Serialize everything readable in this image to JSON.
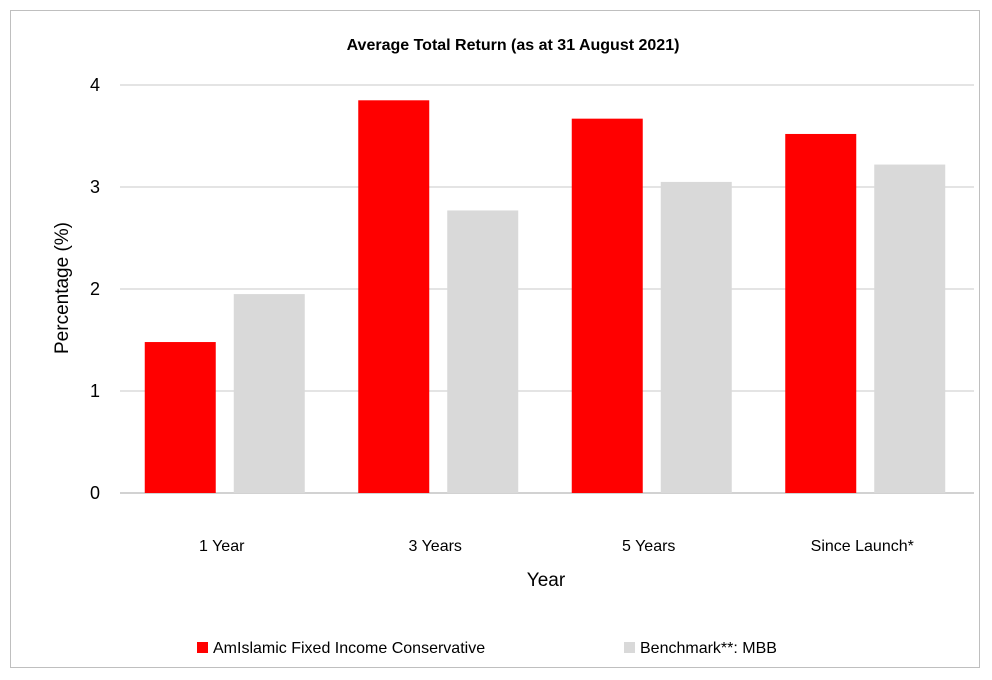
{
  "chart_data": {
    "type": "bar",
    "title": "Average Total Return (as at 31 August 2021)",
    "xlabel": "Year",
    "ylabel": "Percentage (%)",
    "ylim": [
      0,
      4
    ],
    "yticks": [
      "0",
      "1",
      "2",
      "3",
      "4"
    ],
    "grid": true,
    "legend_position": "bottom",
    "categories": [
      "1 Year",
      "3 Years",
      "5 Years",
      "Since Launch*"
    ],
    "series": [
      {
        "name": "AmIslamic Fixed Income Conservative",
        "color": "#ff0000",
        "values": [
          1.48,
          3.85,
          3.67,
          3.52
        ]
      },
      {
        "name": "Benchmark**: MBB",
        "color": "#d9d9d9",
        "values": [
          1.95,
          2.77,
          3.05,
          3.22
        ]
      }
    ]
  }
}
